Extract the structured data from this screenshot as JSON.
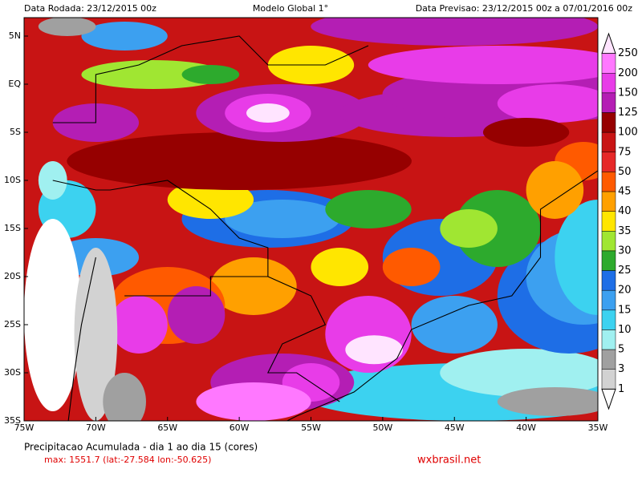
{
  "header": {
    "left": "Data Rodada: 23/12/2015 00z",
    "center": "Modelo Global 1°",
    "right": "Data Previsao: 23/12/2015 00z a 07/01/2016 00z"
  },
  "map": {
    "lat_labels": [
      "5N",
      "EQ",
      "5S",
      "10S",
      "15S",
      "20S",
      "25S",
      "30S",
      "35S"
    ],
    "lon_labels": [
      "75W",
      "70W",
      "65W",
      "60W",
      "55W",
      "50W",
      "45W",
      "40W",
      "35W"
    ]
  },
  "colorbar": {
    "labels": [
      "250",
      "200",
      "150",
      "125",
      "100",
      "75",
      "50",
      "45",
      "40",
      "35",
      "30",
      "25",
      "20",
      "15",
      "10",
      "5",
      "3",
      "1"
    ],
    "colors": [
      "#ffe4ff",
      "#ff78ff",
      "#e83ce8",
      "#b41eb4",
      "#960000",
      "#c81414",
      "#e62828",
      "#ff5a00",
      "#ffa000",
      "#ffe600",
      "#a0e632",
      "#2daa2d",
      "#1e6ee6",
      "#3ca0f0",
      "#3cd2f0",
      "#a0f0f0",
      "#a0a0a0",
      "#d2d2d2",
      "#ffffff"
    ]
  },
  "footer": {
    "title": "Precipitacao Acumulada - dia 1 ao dia 15 (cores)",
    "max": "max: 1551.7 (lat:-27.584 lon:-50.625)",
    "site": "wxbrasil.net"
  }
}
